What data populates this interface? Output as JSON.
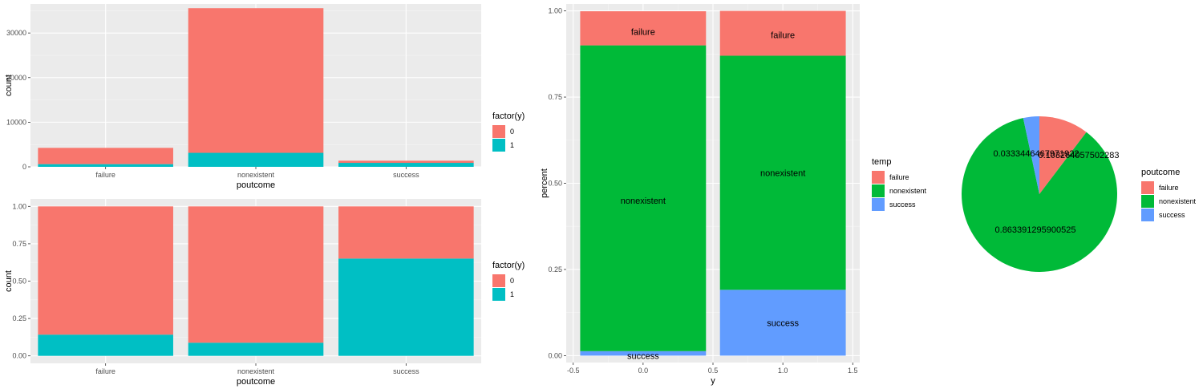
{
  "colors": {
    "panel_bg": "#EBEBEB",
    "grid_major": "#FFFFFF",
    "y0": "#F8766D",
    "y1": "#00BFC4",
    "failure": "#F8766D",
    "nonexistent": "#00BA38",
    "success": "#619CFF"
  },
  "chart_data": [
    {
      "id": "p1",
      "type": "bar",
      "stacked": true,
      "xlabel": "poutcome",
      "ylabel": "count",
      "categories": [
        "failure",
        "nonexistent",
        "success"
      ],
      "series": [
        {
          "name": "0",
          "values": [
            3647,
            32422,
            479
          ]
        },
        {
          "name": "1",
          "values": [
            605,
            3141,
            894
          ]
        }
      ],
      "ylim": [
        0,
        36500
      ],
      "yticks": [
        0,
        10000,
        20000,
        30000
      ],
      "ytick_labels": [
        "0",
        "10000",
        "20000",
        "30000"
      ],
      "legend": {
        "title": "factor(y)",
        "items": [
          "0",
          "1"
        ],
        "placement": "right"
      },
      "grid": true
    },
    {
      "id": "p2",
      "type": "bar",
      "stacked": true,
      "proportional": true,
      "xlabel": "poutcome",
      "ylabel": "count",
      "categories": [
        "failure",
        "nonexistent",
        "success"
      ],
      "series": [
        {
          "name": "0",
          "values": [
            0.858,
            0.912,
            0.349
          ]
        },
        {
          "name": "1",
          "values": [
            0.142,
            0.088,
            0.651
          ]
        }
      ],
      "ylim": [
        -0.05,
        1.05
      ],
      "yticks": [
        0,
        0.25,
        0.5,
        0.75,
        1
      ],
      "ytick_labels": [
        "0.00",
        "0.25",
        "0.50",
        "0.75",
        "1.00"
      ],
      "legend": {
        "title": "factor(y)",
        "items": [
          "0",
          "1"
        ],
        "placement": "right"
      },
      "grid": true
    },
    {
      "id": "p3",
      "type": "bar",
      "stacked": true,
      "xlabel": "y",
      "ylabel": "percent",
      "x": [
        0,
        1
      ],
      "bar_width": 0.9,
      "series": [
        {
          "name": "failure",
          "values": [
            0.099,
            0.13
          ]
        },
        {
          "name": "nonexistent",
          "values": [
            0.887,
            0.679
          ]
        },
        {
          "name": "success",
          "values": [
            0.013,
            0.191
          ]
        }
      ],
      "segment_labels": [
        {
          "x": 0,
          "y": 0.94,
          "text": "failure"
        },
        {
          "x": 0,
          "y": 0.45,
          "text": "nonexistent"
        },
        {
          "x": 0,
          "y": 0.0,
          "text": "success"
        },
        {
          "x": 1,
          "y": 0.93,
          "text": "failure"
        },
        {
          "x": 1,
          "y": 0.53,
          "text": "nonexistent"
        },
        {
          "x": 1,
          "y": 0.095,
          "text": "success"
        }
      ],
      "xlim": [
        -0.55,
        1.55
      ],
      "ylim": [
        -0.02,
        1.02
      ],
      "xticks": [
        -0.5,
        0,
        0.5,
        1,
        1.5
      ],
      "xtick_labels": [
        "-0.5",
        "0.0",
        "0.5",
        "1.0",
        "1.5"
      ],
      "yticks": [
        0,
        0.25,
        0.5,
        0.75,
        1
      ],
      "ytick_labels": [
        "0.00",
        "0.25",
        "0.50",
        "0.75",
        "1.00"
      ],
      "legend": {
        "title": "temp",
        "items": [
          "failure",
          "nonexistent",
          "success"
        ],
        "placement": "right"
      },
      "grid": true
    },
    {
      "id": "p4",
      "type": "pie",
      "categories": [
        "failure",
        "nonexistent",
        "success"
      ],
      "values": [
        0.103264057502283,
        0.863391295900525,
        0.0333446467971922
      ],
      "labels": [
        {
          "text": "0.103264057502283",
          "x": 1345,
          "y": 197
        },
        {
          "text": "0.863391295900525",
          "x": 1291,
          "y": 290
        },
        {
          "text": "0.0333446467971922",
          "x": 1292,
          "y": 195
        }
      ],
      "legend": {
        "title": "poutcome",
        "items": [
          "failure",
          "nonexistent",
          "success"
        ],
        "placement": "right"
      }
    }
  ]
}
